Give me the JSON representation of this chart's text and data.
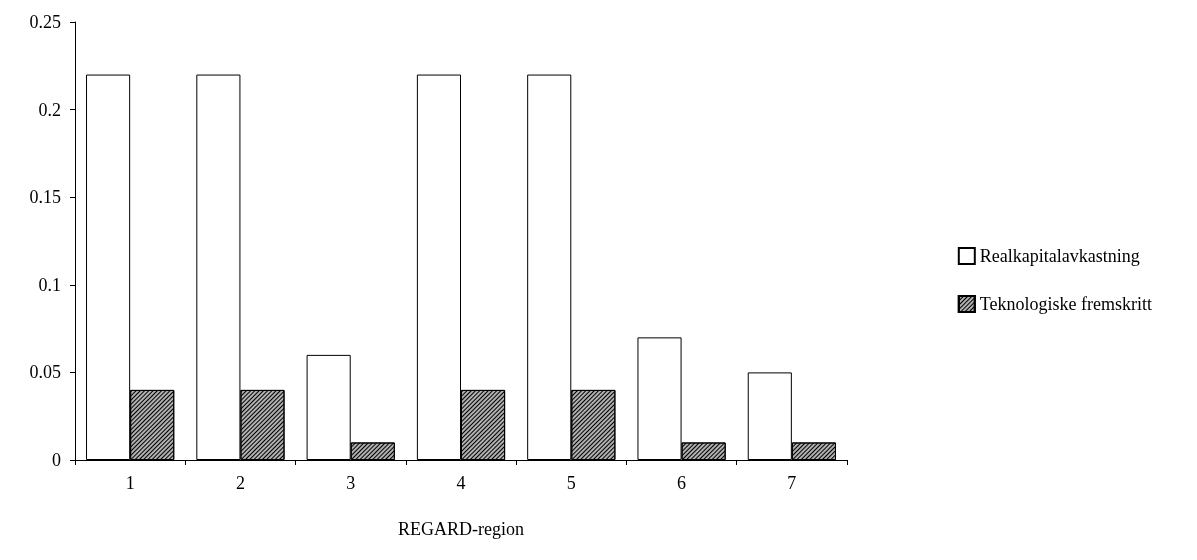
{
  "chart_data": {
    "type": "bar",
    "xlabel": "REGARD-region",
    "categories": [
      "1",
      "2",
      "3",
      "4",
      "5",
      "6",
      "7"
    ],
    "series": [
      {
        "name": "Realkapitalavkastning",
        "color": "#ffffff",
        "values": [
          0.22,
          0.22,
          0.06,
          0.22,
          0.22,
          0.07,
          0.05
        ]
      },
      {
        "name": "Teknologiske fremskritt",
        "color": "#b0b0b0",
        "values": [
          0.04,
          0.04,
          0.01,
          0.04,
          0.04,
          0.01,
          0.01
        ]
      }
    ],
    "ylim": [
      0,
      0.25
    ],
    "yticks": [
      0,
      0.05,
      0.1,
      0.15,
      0.2,
      0.25
    ],
    "grid": false,
    "legend": "right"
  }
}
